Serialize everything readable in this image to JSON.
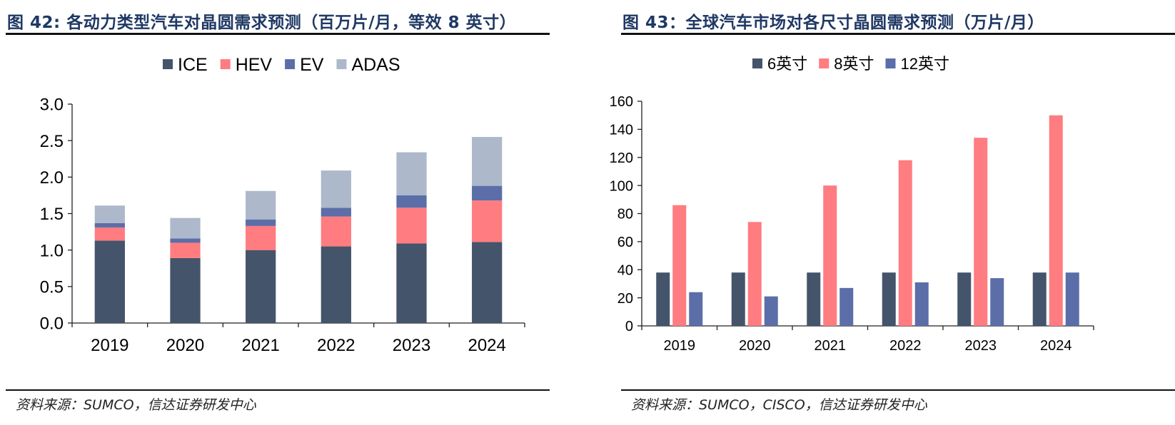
{
  "charts": [
    {
      "figure_title": "图 42: 各动力类型汽车对晶圆需求预测（百万片/月，等效 8 英寸）",
      "source": "资料来源：SUMCO，信达证券研发中心"
    },
    {
      "figure_title": "图 43：全球汽车市场对各尺寸晶圆需求预测（万片/月）",
      "source": "资料来源：SUMCO，CISCO，信达证券研发中心"
    }
  ],
  "chart_data": [
    {
      "type": "bar",
      "stacked": true,
      "categories": [
        "2019",
        "2020",
        "2021",
        "2022",
        "2023",
        "2024"
      ],
      "series": [
        {
          "name": "ICE",
          "color": "#44546a",
          "values": [
            1.13,
            0.89,
            1.0,
            1.05,
            1.09,
            1.11
          ]
        },
        {
          "name": "HEV",
          "color": "#ff7c80",
          "values": [
            0.18,
            0.21,
            0.33,
            0.41,
            0.49,
            0.57
          ]
        },
        {
          "name": "EV",
          "color": "#5b6ea8",
          "values": [
            0.06,
            0.06,
            0.09,
            0.12,
            0.17,
            0.2
          ]
        },
        {
          "name": "ADAS",
          "color": "#adb9ca",
          "values": [
            0.24,
            0.28,
            0.39,
            0.51,
            0.59,
            0.67
          ]
        }
      ],
      "ylim": [
        0,
        3.0
      ],
      "yticks": [
        "0.0",
        "0.5",
        "1.0",
        "1.5",
        "2.0",
        "2.5",
        "3.0"
      ],
      "legend": "top-center",
      "grid": false
    },
    {
      "type": "bar",
      "stacked": false,
      "categories": [
        "2019",
        "2020",
        "2021",
        "2022",
        "2023",
        "2024"
      ],
      "series": [
        {
          "name": "6英寸",
          "color": "#44546a",
          "values": [
            38,
            38,
            38,
            38,
            38,
            38
          ]
        },
        {
          "name": "8英寸",
          "color": "#ff7c80",
          "values": [
            86,
            74,
            100,
            118,
            134,
            150
          ]
        },
        {
          "name": "12英寸",
          "color": "#5b6ea8",
          "values": [
            24,
            21,
            27,
            31,
            34,
            38
          ]
        }
      ],
      "ylim": [
        0,
        160
      ],
      "yticks": [
        "0",
        "20",
        "40",
        "60",
        "80",
        "100",
        "120",
        "140",
        "160"
      ],
      "legend": "top-center",
      "grid": false
    }
  ]
}
